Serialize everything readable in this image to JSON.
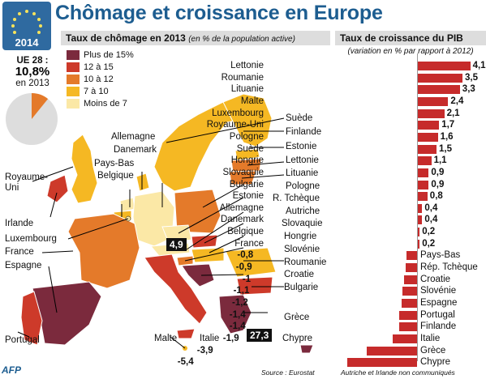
{
  "header": {
    "title": "Chômage et croissance en Europe",
    "logo_year": "2014"
  },
  "chomage": {
    "title_bold": "Taux de chômage en 2013",
    "title_italic": "(en % de la population active)",
    "ue_label": "UE 28 :",
    "ue_value": "10,8%",
    "ue_year": "en 2013",
    "ue_value_number": 10.8,
    "legend": [
      {
        "label": "Plus de 15%",
        "color": "#7b2a3d"
      },
      {
        "label": "12 à 15",
        "color": "#cd3a2a"
      },
      {
        "label": "10 à 12",
        "color": "#e47a2a"
      },
      {
        "label": "7 à 10",
        "color": "#f5b823"
      },
      {
        "label": "Moins de 7",
        "color": "#fbe8a6"
      }
    ],
    "min_badge": "4,9",
    "max_badge": "27,3",
    "countries": [
      "Allemagne",
      "Danemark",
      "Pays-Bas",
      "Belgique",
      "Royaume-Uni",
      "Irlande",
      "Luxembourg",
      "France",
      "Espagne",
      "Portugal",
      "Malte",
      "Italie",
      "Suède",
      "Finlande",
      "Estonie",
      "Lettonie",
      "Lituanie",
      "Pologne",
      "R. Tchèque",
      "Autriche",
      "Slovaquie",
      "Hongrie",
      "Slovénie",
      "Roumanie",
      "Croatie",
      "Bulgarie",
      "Grèce",
      "Chypre"
    ]
  },
  "croissance": {
    "title": "Taux de croissance du PIB",
    "subtitle": "(variation en % par rapport à 2012)",
    "note": "Autriche et Irlande non communiqués",
    "source": "Source : Eurostat",
    "agency": "AFP",
    "rows": [
      {
        "country": "Lettonie",
        "label": "4,1%",
        "value": 4.1
      },
      {
        "country": "Roumanie",
        "label": "3,5",
        "value": 3.5
      },
      {
        "country": "Lituanie",
        "label": "3,3",
        "value": 3.3
      },
      {
        "country": "Malte",
        "label": "2,4",
        "value": 2.4
      },
      {
        "country": "Luxembourg",
        "label": "2,1",
        "value": 2.1
      },
      {
        "country": "Royaume-Uni",
        "label": "1,7",
        "value": 1.7
      },
      {
        "country": "Pologne",
        "label": "1,6",
        "value": 1.6
      },
      {
        "country": "Suède",
        "label": "1,5",
        "value": 1.5
      },
      {
        "country": "Hongrie",
        "label": "1,1",
        "value": 1.1
      },
      {
        "country": "Slovaquie",
        "label": "0,9",
        "value": 0.9
      },
      {
        "country": "Bulgarie",
        "label": "0,9",
        "value": 0.9
      },
      {
        "country": "Estonie",
        "label": "0,8",
        "value": 0.8
      },
      {
        "country": "Allemagne",
        "label": "0,4",
        "value": 0.4
      },
      {
        "country": "Danemark",
        "label": "0,4",
        "value": 0.4
      },
      {
        "country": "Belgique",
        "label": "0,2",
        "value": 0.2
      },
      {
        "country": "France",
        "label": "0,2",
        "value": 0.2
      },
      {
        "country": "Pays-Bas",
        "label": "-0,8",
        "value": -0.8
      },
      {
        "country": "Rép. Tchèque",
        "label": "-0,9",
        "value": -0.9
      },
      {
        "country": "Croatie",
        "label": "-1",
        "value": -1
      },
      {
        "country": "Slovénie",
        "label": "-1,1",
        "value": -1.1
      },
      {
        "country": "Espagne",
        "label": "-1,2",
        "value": -1.2
      },
      {
        "country": "Portugal",
        "label": "-1,4",
        "value": -1.4
      },
      {
        "country": "Finlande",
        "label": "-1,4",
        "value": -1.4
      },
      {
        "country": "Italie",
        "label": "-1,9",
        "value": -1.9
      },
      {
        "country": "Grèce",
        "label": "-3,9",
        "value": -3.9
      },
      {
        "country": "Chypre",
        "label": "-5,4",
        "value": -5.4
      }
    ]
  },
  "colors": {
    "title": "#1d5d90",
    "bar": "#c62b2b"
  }
}
